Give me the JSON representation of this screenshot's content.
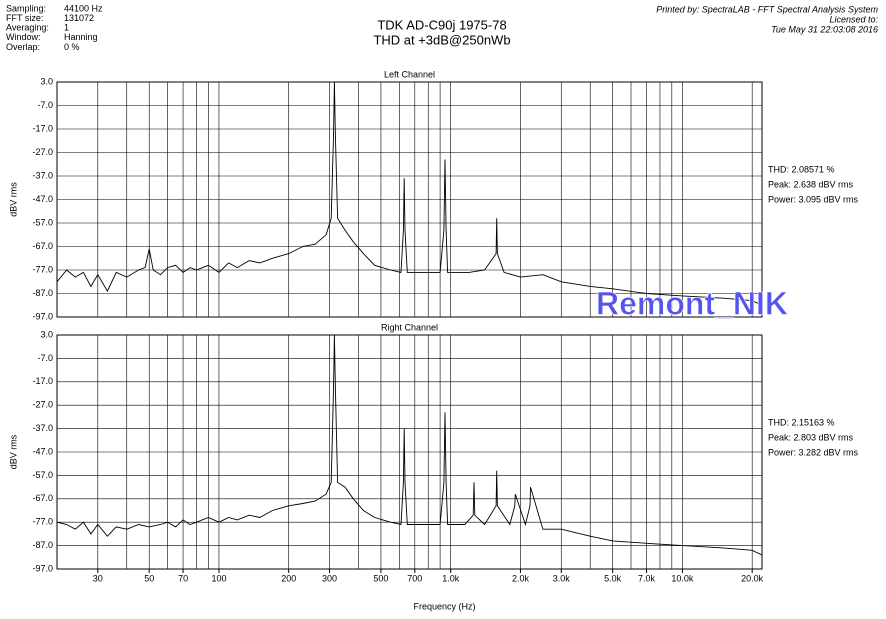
{
  "header": {
    "fields": [
      [
        "Sampling:",
        "44100 Hz"
      ],
      [
        "FFT size:",
        "131072"
      ],
      [
        "Averaging:",
        "1"
      ],
      [
        "Window:",
        "Hanning"
      ],
      [
        "Overlap:",
        "0 %"
      ]
    ],
    "title": "TDK AD-C90j 1975-78",
    "subtitle": "THD at +3dB@250nWb",
    "printed_by": "Printed by: SpectraLAB - FFT Spectral Analysis System",
    "licensed": "Licensed to:",
    "date": "Tue May 31 22:03:08 2016",
    "watermark": "Remont_NIK"
  },
  "chart_data": [
    {
      "type": "line",
      "title": "Left Channel",
      "ylabel": "dBV rms",
      "log_x": true,
      "color": "#000000",
      "xlim": [
        20,
        22050
      ],
      "ylim": [
        -97,
        3
      ],
      "yticks": [
        {
          "value": 3,
          "label": "3.0"
        },
        {
          "value": -7,
          "label": "-7.0"
        },
        {
          "value": -17,
          "label": "-17.0"
        },
        {
          "value": -27,
          "label": "-27.0"
        },
        {
          "value": -37,
          "label": "-37.0"
        },
        {
          "value": -47,
          "label": "-47.0"
        },
        {
          "value": -57,
          "label": "-57.0"
        },
        {
          "value": -67,
          "label": "-67.0"
        },
        {
          "value": -77,
          "label": "-77.0"
        },
        {
          "value": -87,
          "label": "-87.0"
        },
        {
          "value": -97,
          "label": "-97.0"
        }
      ],
      "xgrid": [
        30,
        40,
        50,
        60,
        70,
        80,
        90,
        100,
        200,
        300,
        400,
        500,
        600,
        700,
        800,
        900,
        1000,
        2000,
        3000,
        4000,
        5000,
        6000,
        7000,
        8000,
        9000,
        10000,
        20000
      ],
      "annotations": [
        "THD: 2.08571 %",
        "Peak: 2.638 dBV rms",
        "Power: 3.095 dBV rms"
      ],
      "x": [
        20,
        22,
        24,
        26,
        28,
        30,
        33,
        36,
        40,
        45,
        48,
        50,
        52,
        56,
        60,
        65,
        70,
        75,
        80,
        90,
        100,
        110,
        120,
        135,
        150,
        170,
        200,
        230,
        260,
        290,
        305,
        312,
        315,
        318,
        325,
        350,
        380,
        420,
        470,
        550,
        610,
        625,
        630,
        635,
        650,
        750,
        900,
        935,
        945,
        955,
        970,
        1200,
        1400,
        1570,
        1580,
        1590,
        1700,
        2000,
        2500,
        3000,
        4000,
        5000,
        7000,
        10000,
        15000,
        20000,
        22050
      ],
      "values": [
        -82,
        -77,
        -80,
        -78,
        -84,
        -79,
        -86,
        -78,
        -80,
        -77,
        -76,
        -68,
        -77,
        -79,
        -76,
        -75,
        -78,
        -76,
        -77,
        -75,
        -78,
        -74,
        -76,
        -73,
        -74,
        -72,
        -70,
        -67,
        -66,
        -62,
        -55,
        -20,
        3,
        -20,
        -55,
        -60,
        -65,
        -70,
        -75,
        -77,
        -78,
        -60,
        -38,
        -60,
        -78,
        -78,
        -78,
        -60,
        -30,
        -60,
        -78,
        -78,
        -77,
        -70,
        -55,
        -70,
        -78,
        -80,
        -79,
        -82,
        -84,
        -85,
        -87,
        -88,
        -89,
        -90,
        -92
      ]
    },
    {
      "type": "line",
      "title": "Right Channel",
      "ylabel": "dBV rms",
      "xlabel": "Frequency (Hz)",
      "log_x": true,
      "color": "#000000",
      "xlim": [
        20,
        22050
      ],
      "ylim": [
        -97,
        3
      ],
      "yticks": [
        {
          "value": 3,
          "label": "3.0"
        },
        {
          "value": -7,
          "label": "-7.0"
        },
        {
          "value": -17,
          "label": "-17.0"
        },
        {
          "value": -27,
          "label": "-27.0"
        },
        {
          "value": -37,
          "label": "-37.0"
        },
        {
          "value": -47,
          "label": "-47.0"
        },
        {
          "value": -57,
          "label": "-57.0"
        },
        {
          "value": -67,
          "label": "-67.0"
        },
        {
          "value": -77,
          "label": "-77.0"
        },
        {
          "value": -87,
          "label": "-87.0"
        },
        {
          "value": -97,
          "label": "-97.0"
        }
      ],
      "xgrid": [
        30,
        40,
        50,
        60,
        70,
        80,
        90,
        100,
        200,
        300,
        400,
        500,
        600,
        700,
        800,
        900,
        1000,
        2000,
        3000,
        4000,
        5000,
        6000,
        7000,
        8000,
        9000,
        10000,
        20000
      ],
      "xticks": [
        30,
        50,
        70,
        100,
        200,
        300,
        500,
        700,
        {
          "value": 1000,
          "label": "1.0k"
        },
        {
          "value": 2000,
          "label": "2.0k"
        },
        {
          "value": 3000,
          "label": "3.0k"
        },
        {
          "value": 5000,
          "label": "5.0k"
        },
        {
          "value": 7000,
          "label": "7.0k"
        },
        {
          "value": 10000,
          "label": "10.0k"
        },
        {
          "value": 20000,
          "label": "20.0k"
        }
      ],
      "annotations": [
        "THD: 2.15163 %",
        "Peak: 2.803 dBV rms",
        "Power: 3.282 dBV rms"
      ],
      "x": [
        20,
        22,
        24,
        26,
        28,
        30,
        33,
        36,
        40,
        45,
        50,
        56,
        60,
        65,
        70,
        75,
        80,
        90,
        100,
        110,
        120,
        135,
        150,
        170,
        200,
        230,
        260,
        290,
        305,
        312,
        315,
        318,
        325,
        350,
        380,
        420,
        470,
        550,
        610,
        625,
        630,
        635,
        650,
        750,
        900,
        935,
        945,
        955,
        970,
        1150,
        1250,
        1260,
        1270,
        1400,
        1570,
        1580,
        1590,
        1800,
        1890,
        1900,
        2100,
        2200,
        2210,
        2500,
        3000,
        4000,
        5000,
        7000,
        10000,
        15000,
        20000,
        22050
      ],
      "values": [
        -77,
        -78,
        -80,
        -77,
        -82,
        -78,
        -83,
        -79,
        -80,
        -78,
        -79,
        -78,
        -77,
        -79,
        -76,
        -78,
        -77,
        -75,
        -77,
        -75,
        -76,
        -74,
        -75,
        -72,
        -70,
        -69,
        -68,
        -65,
        -60,
        -20,
        3,
        -20,
        -60,
        -62,
        -67,
        -72,
        -75,
        -77,
        -78,
        -60,
        -37,
        -60,
        -78,
        -78,
        -78,
        -60,
        -30,
        -60,
        -78,
        -78,
        -74,
        -60,
        -74,
        -78,
        -70,
        -55,
        -70,
        -78,
        -70,
        -65,
        -78,
        -70,
        -62,
        -80,
        -80,
        -83,
        -85,
        -86,
        -87,
        -88,
        -89,
        -91
      ]
    }
  ]
}
